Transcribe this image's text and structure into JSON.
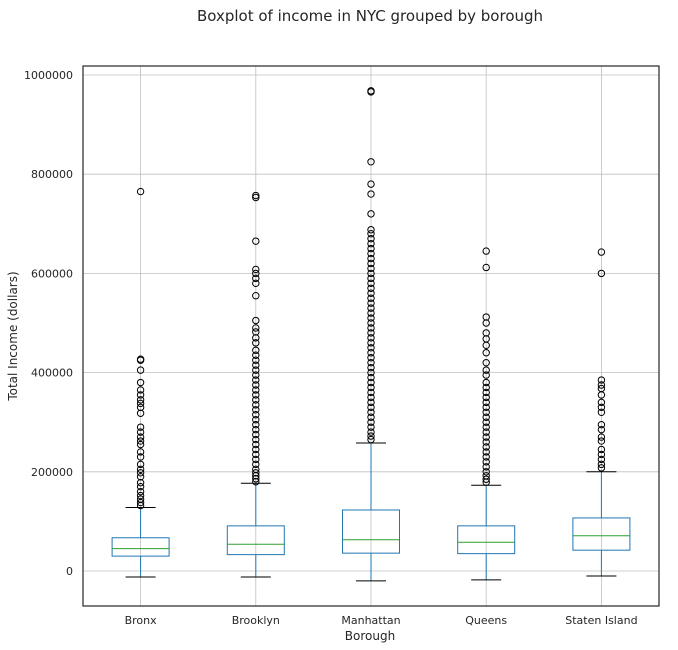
{
  "chart_data": {
    "type": "boxplot",
    "title": "Boxplot of income in NYC grouped by borough",
    "xlabel": "Borough",
    "ylabel": "Total Income (dollars)",
    "ylim": [
      -70000,
      1020000
    ],
    "yticks": [
      0,
      200000,
      400000,
      600000,
      800000,
      1000000
    ],
    "ytick_labels": [
      "0",
      "200000",
      "400000",
      "600000",
      "800000",
      "1000000"
    ],
    "grid": true,
    "colors": {
      "box": "#1f77b4",
      "median": "#2ca02c",
      "whisker": "#1f77b4",
      "cap": "#000000",
      "outlier": "#000000"
    },
    "categories": [
      "Bronx",
      "Brooklyn",
      "Manhattan",
      "Queens",
      "Staten Island"
    ],
    "boxes": [
      {
        "label": "Bronx",
        "whislo": -12000,
        "q1": 30000,
        "med": 45000,
        "q3": 67000,
        "whishi": 128000,
        "fliers": [
          765000,
          427000,
          425000,
          405000,
          380000,
          365000,
          355000,
          345000,
          338000,
          330000,
          318000,
          290000,
          280000,
          270000,
          262000,
          255000,
          240000,
          230000,
          215000,
          205000,
          198000,
          190000,
          178000,
          170000,
          160000,
          152000,
          145000,
          138000,
          132000
        ]
      },
      {
        "label": "Brooklyn",
        "whislo": -12000,
        "q1": 33000,
        "med": 54000,
        "q3": 91000,
        "whishi": 177000,
        "fliers": [
          757000,
          753000,
          665000,
          608000,
          600000,
          590000,
          580000,
          555000,
          505000,
          490000,
          482000,
          470000,
          460000,
          445000,
          435000,
          425000,
          415000,
          405000,
          395000,
          385000,
          375000,
          365000,
          355000,
          345000,
          335000,
          325000,
          315000,
          305000,
          295000,
          285000,
          275000,
          265000,
          255000,
          245000,
          235000,
          225000,
          215000,
          205000,
          198000,
          192000,
          186000,
          180000
        ]
      },
      {
        "label": "Manhattan",
        "whislo": -20000,
        "q1": 36000,
        "med": 63000,
        "q3": 123000,
        "whishi": 258000,
        "fliers": [
          968000,
          966000,
          825000,
          780000,
          760000,
          720000,
          688000,
          680000,
          670000,
          660000,
          650000,
          640000,
          630000,
          620000,
          610000,
          600000,
          590000,
          580000,
          570000,
          560000,
          550000,
          540000,
          530000,
          520000,
          510000,
          500000,
          490000,
          480000,
          470000,
          460000,
          450000,
          440000,
          430000,
          420000,
          410000,
          400000,
          390000,
          380000,
          370000,
          360000,
          350000,
          340000,
          330000,
          320000,
          310000,
          300000,
          290000,
          280000,
          272000,
          265000
        ]
      },
      {
        "label": "Queens",
        "whislo": -18000,
        "q1": 35000,
        "med": 58000,
        "q3": 91000,
        "whishi": 173000,
        "fliers": [
          645000,
          612000,
          512000,
          500000,
          480000,
          468000,
          455000,
          440000,
          420000,
          405000,
          395000,
          380000,
          370000,
          360000,
          350000,
          340000,
          330000,
          320000,
          310000,
          300000,
          290000,
          280000,
          270000,
          260000,
          250000,
          240000,
          230000,
          220000,
          210000,
          200000,
          192000,
          185000,
          179000
        ]
      },
      {
        "label": "Staten Island",
        "whislo": -10000,
        "q1": 42000,
        "med": 71000,
        "q3": 107000,
        "whishi": 200000,
        "fliers": [
          643000,
          600000,
          385000,
          375000,
          368000,
          355000,
          340000,
          330000,
          320000,
          295000,
          285000,
          270000,
          262000,
          245000,
          235000,
          225000,
          215000,
          208000
        ]
      }
    ]
  }
}
